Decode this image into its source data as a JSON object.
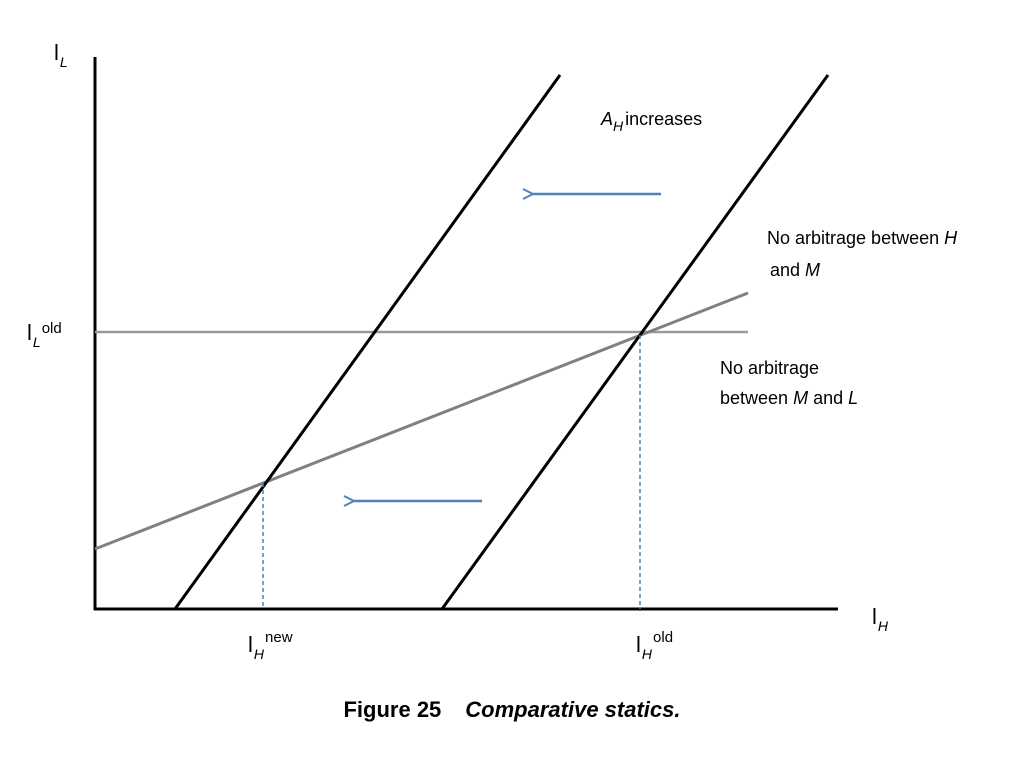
{
  "axes": {
    "y_label": "l",
    "y_sub": "L",
    "x_label": "l",
    "x_sub": "H"
  },
  "ticks": {
    "l_l_old": {
      "main": "l",
      "sub": "L",
      "sup": "old"
    },
    "l_h_new": {
      "main": "l",
      "sub": "H",
      "sup": "new"
    },
    "l_h_old": {
      "main": "l",
      "sub": "H",
      "sup": "old"
    }
  },
  "annotations": {
    "a_h_increases": {
      "var": "A",
      "sub": "H",
      "text": "increases"
    },
    "no_arb_hm": {
      "line1_a": "No arbitrage between ",
      "line1_var": "H",
      "line2_a": "and ",
      "line2_var": "M"
    },
    "no_arb_ml": {
      "line1": "No arbitrage",
      "line2_a": "between ",
      "line2_var1": "M",
      "line2_b": " and ",
      "line2_var2": "L"
    }
  },
  "caption": {
    "number": "Figure 25",
    "text": "Comparative statics."
  },
  "colors": {
    "axis": "#000000",
    "schedule_line": "#000000",
    "arbitrage_line": "#808080",
    "arrow": "#4f81bd",
    "dashed": "#4f81bd"
  }
}
